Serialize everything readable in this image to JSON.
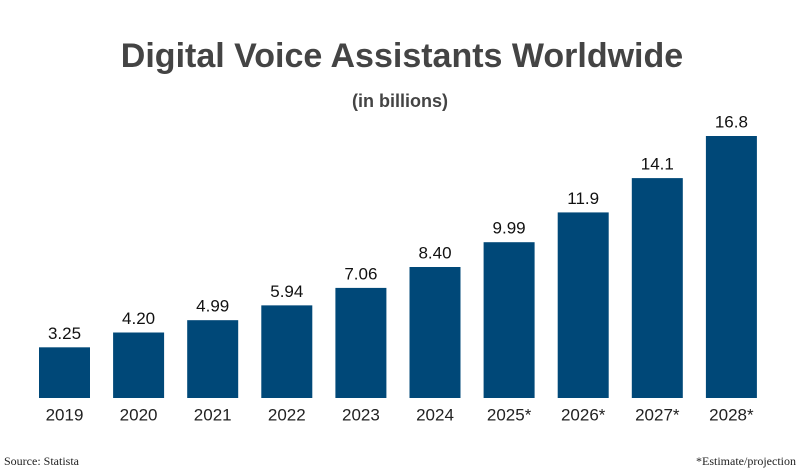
{
  "chart_data": {
    "type": "bar",
    "title": "Digital Voice Assistants Worldwide",
    "subtitle": "(in billions)",
    "categories": [
      "2019",
      "2020",
      "2021",
      "2022",
      "2023",
      "2024",
      "2025*",
      "2026*",
      "2027*",
      "2028*"
    ],
    "values": [
      3.25,
      4.2,
      4.99,
      5.94,
      7.06,
      8.4,
      9.99,
      11.9,
      14.1,
      16.8
    ],
    "value_labels": [
      "3.25",
      "4.20",
      "4.99",
      "5.94",
      "7.06",
      "8.40",
      "9.99",
      "11.9",
      "14.1",
      "16.8"
    ],
    "color": "#004878",
    "source": "Source: Statista",
    "note": "*Estimate/projection"
  }
}
